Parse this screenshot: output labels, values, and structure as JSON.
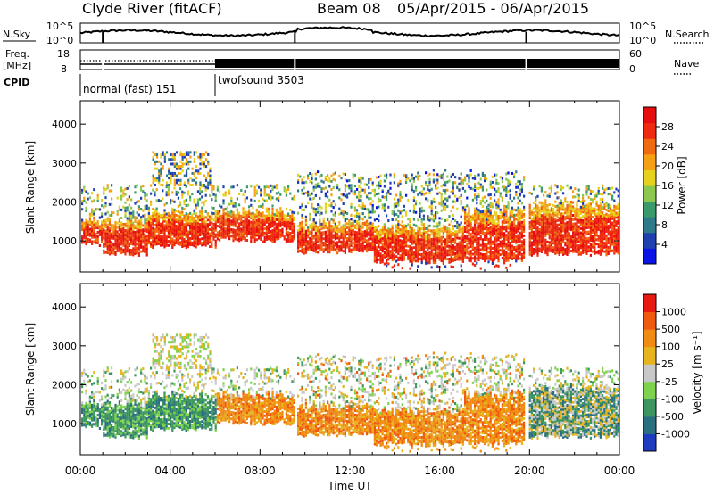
{
  "header": {
    "station": "Clyde River (fitACF)",
    "beam": "Beam 08",
    "dates": "05/Apr/2015 - 06/Apr/2015"
  },
  "strips": {
    "nsky": {
      "label": "N.Sky",
      "tick_top": "10^5",
      "tick_bottom": "10^0",
      "right_tick_top": "10^5",
      "right_tick_bottom": "10^0",
      "right_label": "N.Search"
    },
    "freq": {
      "label_line1": "Freq.",
      "label_line2": "[MHz]",
      "tick_top": "18",
      "tick_bottom": "8",
      "right_tick_top": "60",
      "right_tick_bottom": "0",
      "right_label": "Nave"
    },
    "cpid": {
      "label": "CPID",
      "modes": [
        {
          "name": "normal (fast) 151",
          "start_hour": 0,
          "end_hour": 6
        },
        {
          "name": "twofsound 3503",
          "start_hour": 6,
          "end_hour": 24
        }
      ]
    }
  },
  "colorbars": {
    "power": {
      "title": "Power [dB]",
      "ticks": [
        "28",
        "24",
        "20",
        "16",
        "12",
        "8",
        "4"
      ],
      "colors": [
        "#0a14e6",
        "#2040b0",
        "#2e7a8a",
        "#3a9a6a",
        "#8cc850",
        "#e6d21e",
        "#f5a014",
        "#f06a10",
        "#ee2a10",
        "#e60e0e"
      ]
    },
    "velocity": {
      "title": "Velocity [m s⁻¹]",
      "ticks": [
        "1000",
        "500",
        "100",
        "25",
        "-25",
        "-100",
        "-500",
        "-1000"
      ],
      "colors": [
        "#1e3cbe",
        "#2a7080",
        "#3d9660",
        "#7ed24e",
        "#c8c8c8",
        "#e6b41e",
        "#f08c14",
        "#f05a10",
        "#e61a10"
      ]
    }
  },
  "chart_data": [
    {
      "type": "heatmap",
      "panel": "power",
      "ylabel": "Slant Range [km]",
      "yticks": [
        "4000",
        "3000",
        "2000",
        "1000"
      ],
      "ylim": [
        200,
        4600
      ],
      "xlim": [
        0,
        24
      ],
      "data_gaps_hours": [
        [
          9.5,
          9.6
        ],
        [
          19.75,
          19.95
        ]
      ]
    },
    {
      "type": "heatmap",
      "panel": "velocity",
      "ylabel": "Slant Range [km]",
      "yticks": [
        "4000",
        "3000",
        "2000",
        "1000"
      ],
      "ylim": [
        200,
        4600
      ],
      "xlim": [
        0,
        24
      ],
      "xlabel": "Time UT",
      "xticks": [
        "00:00",
        "04:00",
        "08:00",
        "12:00",
        "16:00",
        "20:00",
        "00:00"
      ],
      "data_gaps_hours": [
        [
          9.5,
          9.6
        ],
        [
          19.75,
          19.95
        ]
      ]
    }
  ]
}
